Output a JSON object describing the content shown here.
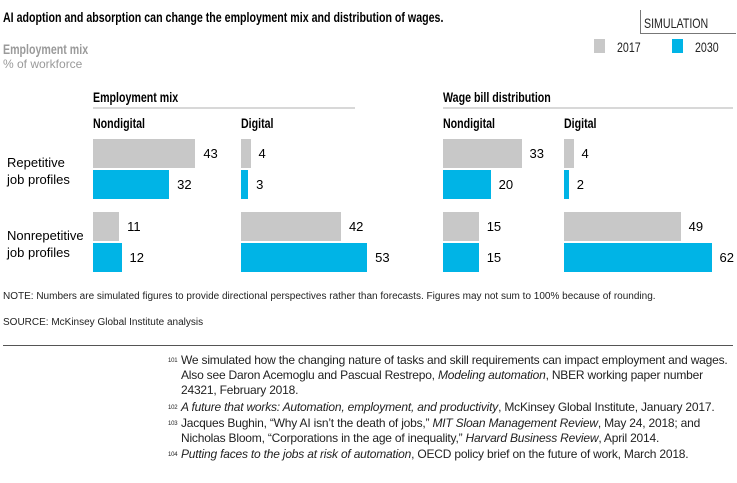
{
  "header": {
    "title": "AI adoption and absorption can change the employment mix and distribution of wages.",
    "badge": "SIMULATION",
    "subtitle": "Employment mix",
    "unit": "% of workforce"
  },
  "chart_data": {
    "type": "bar",
    "orientation": "horizontal",
    "legend": {
      "placement": "top-right",
      "entries": [
        {
          "name": "2017",
          "color": "#c8c8c8"
        },
        {
          "name": "2030",
          "color": "#00b4e6"
        }
      ]
    },
    "row_labels": [
      "Repetitive job profiles",
      "Nonrepetitive job profiles"
    ],
    "panels": [
      {
        "title": "Employment mix",
        "groups": [
          {
            "name": "Nondigital",
            "series": [
              {
                "name": "2017",
                "values": [
                  43,
                  11
                ]
              },
              {
                "name": "2030",
                "values": [
                  32,
                  12
                ]
              }
            ]
          },
          {
            "name": "Digital",
            "series": [
              {
                "name": "2017",
                "values": [
                  4,
                  42
                ]
              },
              {
                "name": "2030",
                "values": [
                  3,
                  53
                ]
              }
            ]
          }
        ]
      },
      {
        "title": "Wage bill distribution",
        "groups": [
          {
            "name": "Nondigital",
            "series": [
              {
                "name": "2017",
                "values": [
                  33,
                  15
                ]
              },
              {
                "name": "2030",
                "values": [
                  20,
                  15
                ]
              }
            ]
          },
          {
            "name": "Digital",
            "series": [
              {
                "name": "2017",
                "values": [
                  4,
                  49
                ]
              },
              {
                "name": "2030",
                "values": [
                  2,
                  62
                ]
              }
            ]
          }
        ]
      }
    ]
  },
  "row_labels_display": [
    [
      "Repetitive",
      "job profiles"
    ],
    [
      "Nonrepetitive",
      "job profiles"
    ]
  ],
  "note": "NOTE: Numbers are simulated figures to provide directional perspectives rather than forecasts. Figures may not sum to 100% because of rounding.",
  "source": "SOURCE:  McKinsey Global Institute analysis",
  "footnotes": [
    {
      "num": "101",
      "parts": [
        {
          "t": "We simulated how the changing nature of tasks and skill requirements can impact employment and wages. Also see Daron Acemoglu and Pascual Restrepo, "
        },
        {
          "t": "Modeling automation",
          "i": true
        },
        {
          "t": ", NBER working paper number 24321, February 2018."
        }
      ]
    },
    {
      "num": "102",
      "parts": [
        {
          "t": "A future that works: Automation, employment, and productivity",
          "i": true
        },
        {
          "t": ", McKinsey Global Institute, January 2017."
        }
      ]
    },
    {
      "num": "103",
      "parts": [
        {
          "t": "Jacques Bughin, “Why AI isn’t the death of jobs,” "
        },
        {
          "t": "MIT Sloan Management Review",
          "i": true
        },
        {
          "t": ", May 24, 2018; and Nicholas Bloom, “Corporations in the age of inequality,” "
        },
        {
          "t": "Harvard Business Review",
          "i": true
        },
        {
          "t": ", April 2014."
        }
      ]
    },
    {
      "num": "104",
      "parts": [
        {
          "t": "Putting faces to the jobs at risk of automation",
          "i": true
        },
        {
          "t": ", OECD policy brief on the future of work, March 2018."
        }
      ]
    }
  ]
}
